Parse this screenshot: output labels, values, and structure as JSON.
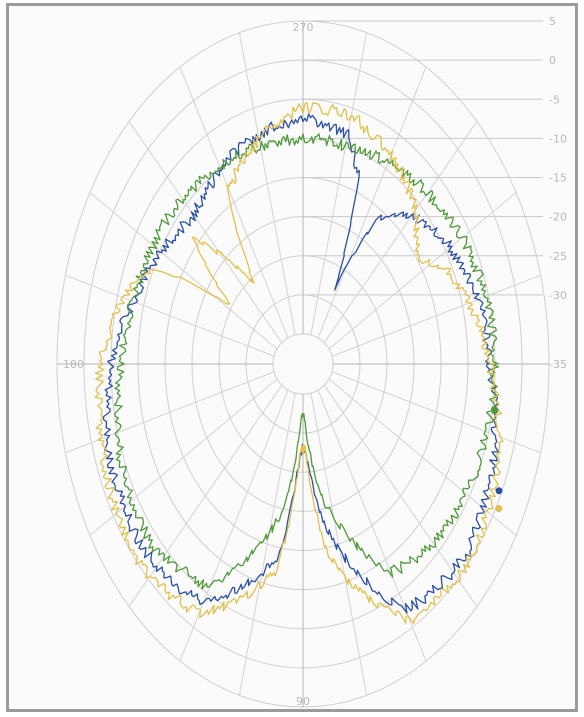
{
  "chart_data": {
    "type": "line",
    "subtype": "polar",
    "title": "",
    "angle_labels": [
      {
        "deg": 270,
        "text": "270"
      },
      {
        "deg": 180,
        "text": "180"
      },
      {
        "deg": 90,
        "text": "90"
      }
    ],
    "radial_ticks": [
      5,
      0,
      -5,
      -10,
      -15,
      -20,
      -25,
      -30,
      -35
    ],
    "radial_tick_labels": [
      "5",
      "0",
      "-5",
      "-10",
      "-15",
      "-20",
      "-25",
      "-30",
      "-35"
    ],
    "r_range": [
      -35,
      5
    ],
    "angle_grid_step_deg": 15,
    "grid": true,
    "series": [
      {
        "color": "#2b4fa6",
        "marker": {
          "theta": 25,
          "r": -0.5
        },
        "points": [
          {
            "theta": 0,
            "r": -6.0
          },
          {
            "theta": 20,
            "r": -3.0
          },
          {
            "theta": 40,
            "r": -1.0
          },
          {
            "theta": 60,
            "r": -2.5
          },
          {
            "theta": 80,
            "r": -18.0
          },
          {
            "theta": 88,
            "r": -28.0
          },
          {
            "theta": 92,
            "r": -28.0
          },
          {
            "theta": 100,
            "r": -14.0
          },
          {
            "theta": 120,
            "r": -3.5
          },
          {
            "theta": 140,
            "r": -2.0
          },
          {
            "theta": 160,
            "r": -2.5
          },
          {
            "theta": 180,
            "r": -5.0
          },
          {
            "theta": 195,
            "r": -8.0
          },
          {
            "theta": 205,
            "r": -9.5
          },
          {
            "theta": 215,
            "r": -11.0
          },
          {
            "theta": 225,
            "r": -12.0
          },
          {
            "theta": 240,
            "r": -10.0
          },
          {
            "theta": 260,
            "r": -8.0
          },
          {
            "theta": 270,
            "r": -7.5
          },
          {
            "theta": 285,
            "r": -8.5
          },
          {
            "theta": 292,
            "r": -13.0
          },
          {
            "theta": 298,
            "r": -28.0
          },
          {
            "theta": 305,
            "r": -16.0
          },
          {
            "theta": 315,
            "r": -12.0
          },
          {
            "theta": 330,
            "r": -9.0
          },
          {
            "theta": 345,
            "r": -7.0
          },
          {
            "theta": 360,
            "r": -6.0
          }
        ]
      },
      {
        "color": "#4f9a3a",
        "marker": {
          "theta": 10,
          "r": -4.5
        },
        "points": [
          {
            "theta": 0,
            "r": -5.0
          },
          {
            "theta": 20,
            "r": -5.5
          },
          {
            "theta": 40,
            "r": -6.0
          },
          {
            "theta": 60,
            "r": -8.0
          },
          {
            "theta": 80,
            "r": -22.0
          },
          {
            "theta": 88,
            "r": -32.0
          },
          {
            "theta": 92,
            "r": -32.0
          },
          {
            "theta": 100,
            "r": -20.0
          },
          {
            "theta": 120,
            "r": -6.0
          },
          {
            "theta": 140,
            "r": -3.5
          },
          {
            "theta": 160,
            "r": -4.5
          },
          {
            "theta": 180,
            "r": -7.0
          },
          {
            "theta": 195,
            "r": -8.0
          },
          {
            "theta": 210,
            "r": -8.5
          },
          {
            "theta": 225,
            "r": -9.0
          },
          {
            "theta": 240,
            "r": -9.5
          },
          {
            "theta": 255,
            "r": -10.0
          },
          {
            "theta": 270,
            "r": -10.0
          },
          {
            "theta": 285,
            "r": -10.0
          },
          {
            "theta": 300,
            "r": -9.0
          },
          {
            "theta": 315,
            "r": -8.0
          },
          {
            "theta": 330,
            "r": -6.5
          },
          {
            "theta": 345,
            "r": -5.5
          },
          {
            "theta": 360,
            "r": -5.0
          }
        ]
      },
      {
        "color": "#e2c04a",
        "marker": {
          "theta": 28,
          "r": 0.5
        },
        "points": [
          {
            "theta": 0,
            "r": -6.0
          },
          {
            "theta": 20,
            "r": -2.0
          },
          {
            "theta": 40,
            "r": 0.0
          },
          {
            "theta": 60,
            "r": -1.0
          },
          {
            "theta": 80,
            "r": -14.0
          },
          {
            "theta": 88,
            "r": -28.0
          },
          {
            "theta": 92,
            "r": -28.0
          },
          {
            "theta": 100,
            "r": -12.0
          },
          {
            "theta": 120,
            "r": -2.0
          },
          {
            "theta": 140,
            "r": 0.0
          },
          {
            "theta": 160,
            "r": -1.5
          },
          {
            "theta": 180,
            "r": -3.0
          },
          {
            "theta": 195,
            "r": -6.0
          },
          {
            "theta": 205,
            "r": -10.0
          },
          {
            "theta": 212,
            "r": -25.0
          },
          {
            "theta": 220,
            "r": -14.0
          },
          {
            "theta": 232,
            "r": -26.0
          },
          {
            "theta": 240,
            "r": -13.0
          },
          {
            "theta": 255,
            "r": -9.0
          },
          {
            "theta": 270,
            "r": -6.0
          },
          {
            "theta": 285,
            "r": -6.0
          },
          {
            "theta": 300,
            "r": -8.0
          },
          {
            "theta": 315,
            "r": -11.0
          },
          {
            "theta": 325,
            "r": -15.0
          },
          {
            "theta": 335,
            "r": -11.0
          },
          {
            "theta": 348,
            "r": -8.0
          },
          {
            "theta": 360,
            "r": -6.0
          }
        ]
      }
    ]
  }
}
